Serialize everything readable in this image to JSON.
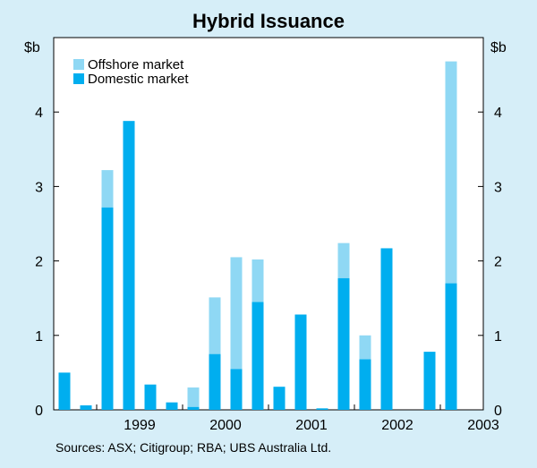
{
  "chart_data": {
    "type": "bar",
    "stacked": true,
    "title": "Hybrid Issuance",
    "ylabel_left": "$b",
    "ylabel_right": "$b",
    "ylim": [
      0,
      5
    ],
    "yticks": [
      0,
      1,
      2,
      3,
      4
    ],
    "x_period_labels": [
      "1999",
      "2000",
      "2001",
      "2002",
      "2003"
    ],
    "x": [
      "1998Q3",
      "1998Q4",
      "1999Q1",
      "1999Q2",
      "1999Q3",
      "1999Q4",
      "2000Q1",
      "2000Q2",
      "2000Q3",
      "2000Q4",
      "2001Q1",
      "2001Q2",
      "2001Q3",
      "2001Q4",
      "2002Q1",
      "2002Q2",
      "2002Q3",
      "2002Q4",
      "2003Q1",
      "2003Q2"
    ],
    "series": [
      {
        "name": "Domestic market",
        "color": "#00aeef",
        "values": [
          0.5,
          0.06,
          2.72,
          3.88,
          0.34,
          0.1,
          0.04,
          0.75,
          0.55,
          1.45,
          0.31,
          1.28,
          0.02,
          1.77,
          0.68,
          2.17,
          0.0,
          0.78,
          1.7,
          0.0
        ]
      },
      {
        "name": "Offshore market",
        "color": "#8fd8f4",
        "values": [
          0,
          0,
          0.5,
          0,
          0,
          0,
          0.26,
          0.76,
          1.5,
          0.57,
          0,
          0,
          0,
          0.47,
          0.32,
          0,
          0,
          0,
          2.98,
          0
        ]
      }
    ],
    "legend_position": "top-left",
    "source": "Sources: ASX; Citigroup; RBA; UBS Australia Ltd."
  }
}
